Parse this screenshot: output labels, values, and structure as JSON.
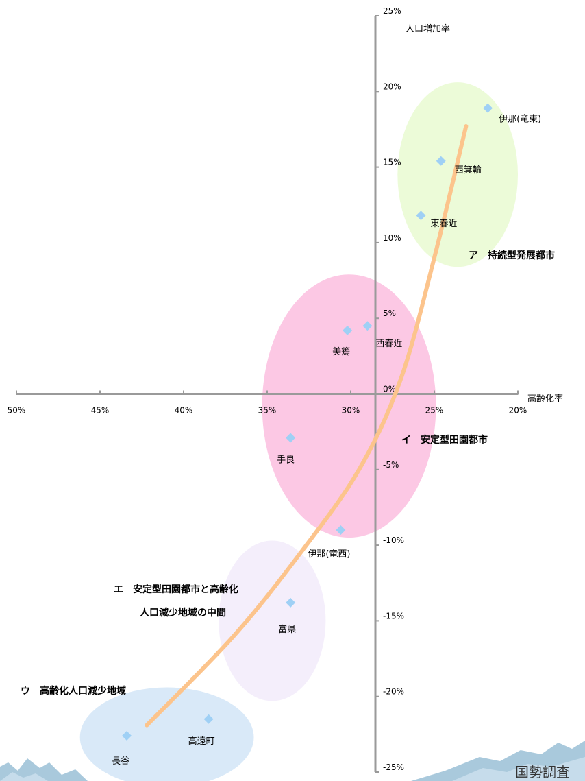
{
  "chart_data": {
    "type": "scatter",
    "x_axis": {
      "label": "高齢化率",
      "range": [
        20,
        50
      ],
      "reversed": true,
      "ticks": [
        50,
        45,
        40,
        35,
        30,
        25,
        20
      ],
      "tick_labels": [
        "50%",
        "45%",
        "40%",
        "35%",
        "30%",
        "25%",
        "20%"
      ]
    },
    "y_axis": {
      "label": "人口増加率",
      "range": [
        -25,
        25
      ],
      "ticks": [
        25,
        20,
        15,
        10,
        5,
        0,
        -5,
        -10,
        -15,
        -20,
        -25
      ],
      "tick_labels": [
        "25%",
        "20%",
        "15%",
        "10%",
        "5%",
        "0%",
        "-5%",
        "-10%",
        "-15%",
        "-20%",
        "-25%"
      ]
    },
    "points": [
      {
        "label": "伊那(竜東)",
        "x": 21.8,
        "y": 18.9
      },
      {
        "label": "西箕輪",
        "x": 24.6,
        "y": 15.4
      },
      {
        "label": "東春近",
        "x": 25.8,
        "y": 11.8
      },
      {
        "label": "西春近",
        "x": 29.0,
        "y": 4.5
      },
      {
        "label": "美篶",
        "x": 30.2,
        "y": 4.2
      },
      {
        "label": "手良",
        "x": 33.6,
        "y": -2.9
      },
      {
        "label": "伊那(竜西)",
        "x": 30.6,
        "y": -9.0
      },
      {
        "label": "富県",
        "x": 33.6,
        "y": -13.8
      },
      {
        "label": "高遠町",
        "x": 38.5,
        "y": -21.5
      },
      {
        "label": "長谷",
        "x": 43.4,
        "y": -22.6
      }
    ],
    "groups": [
      {
        "label": "ア　持続型発展都市",
        "fill": "#ecfbd8",
        "cx": 23.6,
        "cy": 14.5,
        "rx": 3.6,
        "ry": 6.1
      },
      {
        "label": "イ　安定型田園都市",
        "fill": "#fcc8e4",
        "cx": 30.1,
        "cy": -0.8,
        "rx": 5.2,
        "ry": 8.7
      },
      {
        "label": "エ　安定型田園都市と高齢化",
        "label_line2": "人口減少地域の中間",
        "fill": "#f4eefb",
        "cx": 34.7,
        "cy": -15.0,
        "rx": 3.2,
        "ry": 5.3
      },
      {
        "label": "ウ　高齢化人口減少地域",
        "fill": "#d9e9f8",
        "cx": 41.0,
        "cy": -22.7,
        "rx": 5.2,
        "ry": 3.3
      }
    ],
    "trend_line": {
      "color": "#fcc48c",
      "x": [
        42.2,
        37.0,
        33.0,
        29.5,
        27.0,
        25.0,
        23.1
      ],
      "y": [
        -21.9,
        -16.0,
        -10.5,
        -5.0,
        1.0,
        9.0,
        17.7
      ]
    },
    "marker_color": "#9fd0f5",
    "axis_color": "#9a9a9a"
  },
  "source_text": "国勢調査"
}
